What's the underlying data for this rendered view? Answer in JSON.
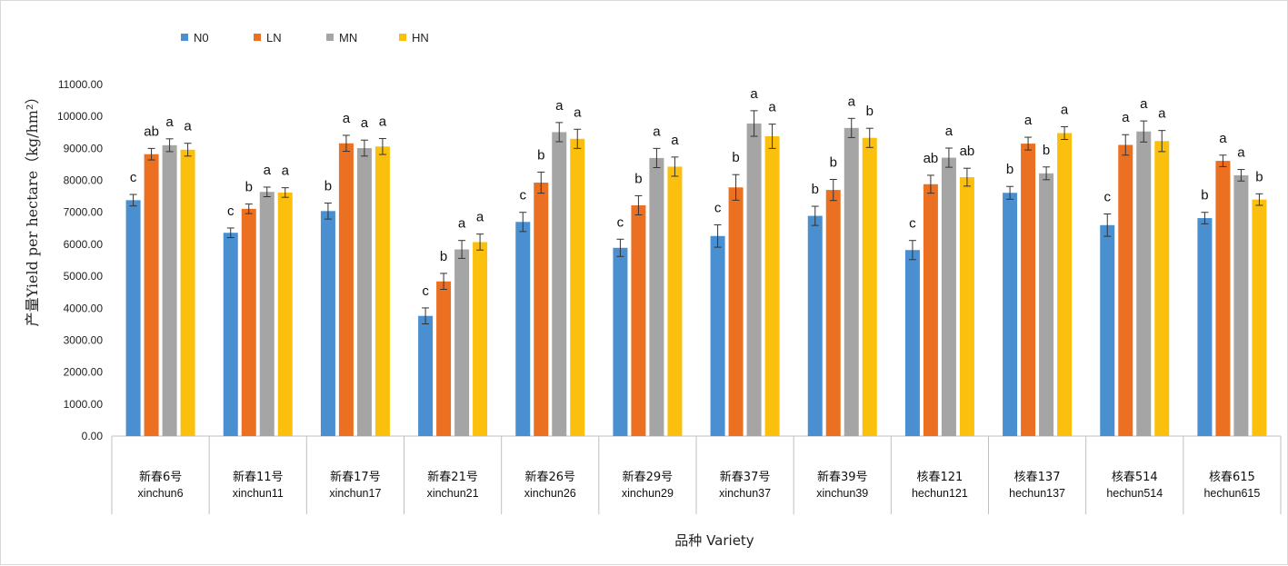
{
  "chart_data": {
    "type": "bar",
    "xlabel": "品种 Variety",
    "ylabel": "产量Yield per hectare（kg/hm²）",
    "ylim": [
      0,
      11000
    ],
    "yticks": [
      "0.00",
      "1000.00",
      "2000.00",
      "3000.00",
      "4000.00",
      "5000.00",
      "6000.00",
      "7000.00",
      "8000.00",
      "9000.00",
      "10000.00",
      "11000.00"
    ],
    "legend_position": "top-left",
    "grid": false,
    "categories": [
      {
        "cn": "新春6号",
        "en": "xinchun6"
      },
      {
        "cn": "新春11号",
        "en": "xinchun11"
      },
      {
        "cn": "新春17号",
        "en": "xinchun17"
      },
      {
        "cn": "新春21号",
        "en": "xinchun21"
      },
      {
        "cn": "新春26号",
        "en": "xinchun26"
      },
      {
        "cn": "新春29号",
        "en": "xinchun29"
      },
      {
        "cn": "新春37号",
        "en": "xinchun37"
      },
      {
        "cn": "新春39号",
        "en": "xinchun39"
      },
      {
        "cn": "核春121",
        "en": "hechun121"
      },
      {
        "cn": "核春137",
        "en": "hechun137"
      },
      {
        "cn": "核春514",
        "en": "hechun514"
      },
      {
        "cn": "核春615",
        "en": "hechun615"
      }
    ],
    "series": [
      {
        "name": "N0",
        "color": "#4a8fd0",
        "values": [
          7380,
          6360,
          7040,
          3760,
          6700,
          5890,
          6260,
          6890,
          5820,
          7610,
          6600,
          6820
        ],
        "errors": [
          180,
          150,
          250,
          250,
          300,
          270,
          350,
          300,
          300,
          200,
          350,
          180
        ],
        "letters": [
          "c",
          "c",
          "b",
          "c",
          "c",
          "c",
          "c",
          "b",
          "c",
          "b",
          "c",
          "b"
        ]
      },
      {
        "name": "LN",
        "color": "#ec7022",
        "values": [
          8820,
          7110,
          9160,
          4840,
          7930,
          7220,
          7780,
          7700,
          7880,
          9150,
          9110,
          8610
        ],
        "errors": [
          180,
          150,
          250,
          250,
          330,
          300,
          400,
          330,
          280,
          200,
          320,
          180
        ],
        "letters": [
          "ab",
          "b",
          "a",
          "b",
          "b",
          "b",
          "b",
          "b",
          "ab",
          "a",
          "a",
          "a"
        ]
      },
      {
        "name": "MN",
        "color": "#a5a5a5",
        "values": [
          9100,
          7640,
          9010,
          5840,
          9510,
          8700,
          9780,
          9640,
          8710,
          8220,
          9530,
          8160
        ],
        "errors": [
          200,
          150,
          250,
          280,
          300,
          300,
          400,
          300,
          300,
          200,
          330,
          180
        ],
        "letters": [
          "a",
          "a",
          "a",
          "a",
          "a",
          "a",
          "a",
          "a",
          "a",
          "b",
          "a",
          "a"
        ]
      },
      {
        "name": "HN",
        "color": "#fbbf0d",
        "values": [
          8960,
          7620,
          9060,
          6070,
          9300,
          8430,
          9380,
          9330,
          8100,
          9480,
          9230,
          7400
        ],
        "errors": [
          200,
          150,
          250,
          250,
          300,
          300,
          380,
          300,
          280,
          200,
          330,
          180
        ],
        "letters": [
          "a",
          "a",
          "a",
          "a",
          "a",
          "a",
          "a",
          "b",
          "ab",
          "a",
          "a",
          "b"
        ]
      }
    ]
  }
}
